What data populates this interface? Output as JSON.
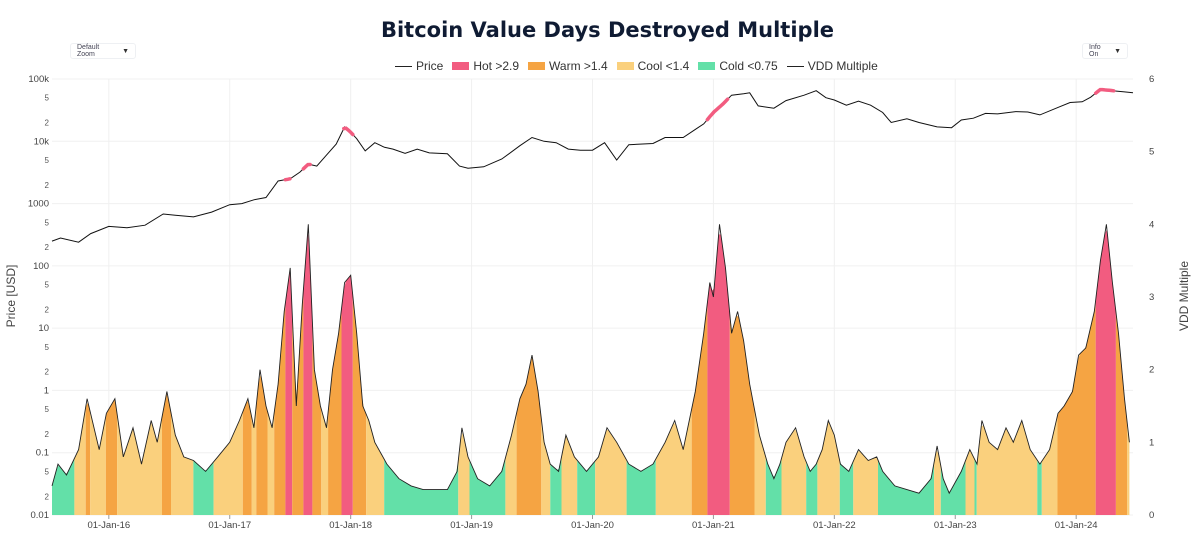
{
  "controls": {
    "zoom_label": "Default Zoom",
    "info_label": "Info On",
    "dropdown_icon": "▼"
  },
  "chart_data": {
    "type": "line",
    "title": "Bitcoin Value Days Destroyed Multiple",
    "legend": [
      {
        "label": "Price",
        "kind": "line",
        "color": "#000000"
      },
      {
        "label": "Hot >2.9",
        "kind": "band",
        "color": "#f25c80"
      },
      {
        "label": "Warm >1.4",
        "kind": "band",
        "color": "#f5a443"
      },
      {
        "label": "Cool <1.4",
        "kind": "band",
        "color": "#fad07d"
      },
      {
        "label": "Cold <0.75",
        "kind": "band",
        "color": "#63e0a8"
      },
      {
        "label": "VDD Multiple",
        "kind": "line",
        "color": "#000000"
      }
    ],
    "y_left": {
      "title": "Price [USD]",
      "scale": "log",
      "range": [
        0.01,
        100000
      ],
      "major_ticks": [
        {
          "value": 100000,
          "label": "100k"
        },
        {
          "value": 10000,
          "label": "10k"
        },
        {
          "value": 1000,
          "label": "1000"
        },
        {
          "value": 100,
          "label": "100"
        },
        {
          "value": 10,
          "label": "10"
        },
        {
          "value": 1,
          "label": "1"
        },
        {
          "value": 0.1,
          "label": "0.1"
        },
        {
          "value": 0.01,
          "label": "0.01"
        }
      ],
      "minor_ticks": [
        {
          "value": 50000,
          "label": "5"
        },
        {
          "value": 20000,
          "label": "2"
        },
        {
          "value": 5000,
          "label": "5"
        },
        {
          "value": 2000,
          "label": "2"
        },
        {
          "value": 500,
          "label": "5"
        },
        {
          "value": 200,
          "label": "2"
        },
        {
          "value": 50,
          "label": "5"
        },
        {
          "value": 20,
          "label": "2"
        },
        {
          "value": 5,
          "label": "5"
        },
        {
          "value": 2,
          "label": "2"
        },
        {
          "value": 0.5,
          "label": "5"
        },
        {
          "value": 0.2,
          "label": "2"
        },
        {
          "value": 0.05,
          "label": "5"
        },
        {
          "value": 0.02,
          "label": "2"
        }
      ]
    },
    "y_right": {
      "title": "VDD Multiple",
      "scale": "linear",
      "range": [
        0,
        6
      ],
      "ticks": [
        {
          "value": 0,
          "label": "0"
        },
        {
          "value": 1,
          "label": "1"
        },
        {
          "value": 2,
          "label": "2"
        },
        {
          "value": 3,
          "label": "3"
        },
        {
          "value": 4,
          "label": "4"
        },
        {
          "value": 5,
          "label": "5"
        },
        {
          "value": 6,
          "label": "6"
        }
      ]
    },
    "x_axis": {
      "range": [
        2015.53,
        2024.47
      ],
      "ticks": [
        {
          "value": 2016.0,
          "label": "01-Jan-16"
        },
        {
          "value": 2017.0,
          "label": "01-Jan-17"
        },
        {
          "value": 2018.0,
          "label": "01-Jan-18"
        },
        {
          "value": 2019.0,
          "label": "01-Jan-19"
        },
        {
          "value": 2020.0,
          "label": "01-Jan-20"
        },
        {
          "value": 2021.0,
          "label": "01-Jan-21"
        },
        {
          "value": 2022.0,
          "label": "01-Jan-22"
        },
        {
          "value": 2023.0,
          "label": "01-Jan-23"
        },
        {
          "value": 2024.0,
          "label": "01-Jan-24"
        }
      ]
    },
    "thresholds": {
      "hot": 2.9,
      "warm": 1.4,
      "cool": 0.75
    },
    "price_series": [
      [
        2015.53,
        250
      ],
      [
        2015.6,
        280
      ],
      [
        2015.75,
        240
      ],
      [
        2015.85,
        330
      ],
      [
        2016.0,
        430
      ],
      [
        2016.15,
        410
      ],
      [
        2016.3,
        450
      ],
      [
        2016.45,
        680
      ],
      [
        2016.55,
        650
      ],
      [
        2016.7,
        610
      ],
      [
        2016.85,
        730
      ],
      [
        2017.0,
        960
      ],
      [
        2017.1,
        1000
      ],
      [
        2017.2,
        1150
      ],
      [
        2017.3,
        1250
      ],
      [
        2017.4,
        2300
      ],
      [
        2017.5,
        2500
      ],
      [
        2017.58,
        3200
      ],
      [
        2017.65,
        4300
      ],
      [
        2017.72,
        4000
      ],
      [
        2017.8,
        6000
      ],
      [
        2017.88,
        9000
      ],
      [
        2017.95,
        17000
      ],
      [
        2018.0,
        14000
      ],
      [
        2018.05,
        11000
      ],
      [
        2018.12,
        7000
      ],
      [
        2018.2,
        9500
      ],
      [
        2018.28,
        8000
      ],
      [
        2018.35,
        7500
      ],
      [
        2018.45,
        6400
      ],
      [
        2018.55,
        7500
      ],
      [
        2018.65,
        6500
      ],
      [
        2018.8,
        6300
      ],
      [
        2018.9,
        4000
      ],
      [
        2018.97,
        3700
      ],
      [
        2019.1,
        3900
      ],
      [
        2019.25,
        5200
      ],
      [
        2019.4,
        8500
      ],
      [
        2019.5,
        11500
      ],
      [
        2019.6,
        10000
      ],
      [
        2019.7,
        9500
      ],
      [
        2019.8,
        7500
      ],
      [
        2019.9,
        7200
      ],
      [
        2020.0,
        7200
      ],
      [
        2020.1,
        9500
      ],
      [
        2020.2,
        5000
      ],
      [
        2020.3,
        8800
      ],
      [
        2020.5,
        9200
      ],
      [
        2020.6,
        11500
      ],
      [
        2020.75,
        11500
      ],
      [
        2020.85,
        15500
      ],
      [
        2020.92,
        19000
      ],
      [
        2021.0,
        29000
      ],
      [
        2021.08,
        40000
      ],
      [
        2021.15,
        55000
      ],
      [
        2021.25,
        58000
      ],
      [
        2021.3,
        60000
      ],
      [
        2021.37,
        37000
      ],
      [
        2021.5,
        34000
      ],
      [
        2021.6,
        45000
      ],
      [
        2021.75,
        55000
      ],
      [
        2021.85,
        65000
      ],
      [
        2021.93,
        50000
      ],
      [
        2022.0,
        46000
      ],
      [
        2022.1,
        38000
      ],
      [
        2022.2,
        44000
      ],
      [
        2022.3,
        38000
      ],
      [
        2022.4,
        29000
      ],
      [
        2022.47,
        20000
      ],
      [
        2022.6,
        23000
      ],
      [
        2022.7,
        20000
      ],
      [
        2022.85,
        17000
      ],
      [
        2022.97,
        16500
      ],
      [
        2023.05,
        22000
      ],
      [
        2023.15,
        23500
      ],
      [
        2023.25,
        28000
      ],
      [
        2023.35,
        27500
      ],
      [
        2023.5,
        30000
      ],
      [
        2023.6,
        29500
      ],
      [
        2023.7,
        26500
      ],
      [
        2023.85,
        35000
      ],
      [
        2023.95,
        42000
      ],
      [
        2024.05,
        43000
      ],
      [
        2024.12,
        51000
      ],
      [
        2024.2,
        68000
      ],
      [
        2024.3,
        65000
      ],
      [
        2024.4,
        62000
      ],
      [
        2024.47,
        60000
      ]
    ],
    "vdd_series": [
      [
        2015.53,
        0.4
      ],
      [
        2015.58,
        0.7
      ],
      [
        2015.65,
        0.55
      ],
      [
        2015.75,
        0.9
      ],
      [
        2015.82,
        1.6
      ],
      [
        2015.92,
        0.9
      ],
      [
        2015.98,
        1.4
      ],
      [
        2016.05,
        1.6
      ],
      [
        2016.12,
        0.8
      ],
      [
        2016.2,
        1.2
      ],
      [
        2016.27,
        0.7
      ],
      [
        2016.35,
        1.3
      ],
      [
        2016.4,
        1.0
      ],
      [
        2016.48,
        1.7
      ],
      [
        2016.55,
        1.1
      ],
      [
        2016.62,
        0.8
      ],
      [
        2016.7,
        0.75
      ],
      [
        2016.8,
        0.6
      ],
      [
        2016.9,
        0.8
      ],
      [
        2017.0,
        1.0
      ],
      [
        2017.08,
        1.3
      ],
      [
        2017.15,
        1.6
      ],
      [
        2017.2,
        1.2
      ],
      [
        2017.25,
        2.0
      ],
      [
        2017.3,
        1.5
      ],
      [
        2017.35,
        1.2
      ],
      [
        2017.4,
        1.8
      ],
      [
        2017.45,
        2.8
      ],
      [
        2017.5,
        3.4
      ],
      [
        2017.55,
        1.5
      ],
      [
        2017.6,
        2.9
      ],
      [
        2017.65,
        4.0
      ],
      [
        2017.7,
        2.0
      ],
      [
        2017.75,
        1.5
      ],
      [
        2017.8,
        1.2
      ],
      [
        2017.85,
        2.0
      ],
      [
        2017.9,
        2.5
      ],
      [
        2017.95,
        3.2
      ],
      [
        2018.0,
        3.3
      ],
      [
        2018.05,
        2.5
      ],
      [
        2018.1,
        1.5
      ],
      [
        2018.15,
        1.3
      ],
      [
        2018.2,
        1.0
      ],
      [
        2018.3,
        0.7
      ],
      [
        2018.4,
        0.5
      ],
      [
        2018.5,
        0.4
      ],
      [
        2018.6,
        0.35
      ],
      [
        2018.7,
        0.35
      ],
      [
        2018.8,
        0.35
      ],
      [
        2018.88,
        0.6
      ],
      [
        2018.92,
        1.2
      ],
      [
        2018.97,
        0.8
      ],
      [
        2019.05,
        0.5
      ],
      [
        2019.15,
        0.4
      ],
      [
        2019.25,
        0.6
      ],
      [
        2019.33,
        1.1
      ],
      [
        2019.4,
        1.6
      ],
      [
        2019.45,
        1.8
      ],
      [
        2019.5,
        2.2
      ],
      [
        2019.55,
        1.7
      ],
      [
        2019.6,
        1.0
      ],
      [
        2019.65,
        0.7
      ],
      [
        2019.72,
        0.6
      ],
      [
        2019.78,
        1.1
      ],
      [
        2019.85,
        0.8
      ],
      [
        2019.95,
        0.6
      ],
      [
        2020.05,
        0.8
      ],
      [
        2020.12,
        1.2
      ],
      [
        2020.2,
        1.0
      ],
      [
        2020.3,
        0.7
      ],
      [
        2020.4,
        0.6
      ],
      [
        2020.5,
        0.7
      ],
      [
        2020.6,
        1.0
      ],
      [
        2020.68,
        1.3
      ],
      [
        2020.75,
        0.9
      ],
      [
        2020.85,
        1.7
      ],
      [
        2020.92,
        2.5
      ],
      [
        2020.97,
        3.2
      ],
      [
        2021.0,
        3.0
      ],
      [
        2021.05,
        4.0
      ],
      [
        2021.1,
        3.4
      ],
      [
        2021.15,
        2.5
      ],
      [
        2021.2,
        2.8
      ],
      [
        2021.25,
        2.4
      ],
      [
        2021.3,
        1.8
      ],
      [
        2021.38,
        1.1
      ],
      [
        2021.45,
        0.7
      ],
      [
        2021.5,
        0.5
      ],
      [
        2021.55,
        0.7
      ],
      [
        2021.6,
        1.0
      ],
      [
        2021.68,
        1.2
      ],
      [
        2021.75,
        0.8
      ],
      [
        2021.8,
        0.6
      ],
      [
        2021.85,
        0.7
      ],
      [
        2021.9,
        0.9
      ],
      [
        2021.95,
        1.3
      ],
      [
        2022.0,
        1.1
      ],
      [
        2022.05,
        0.7
      ],
      [
        2022.12,
        0.6
      ],
      [
        2022.2,
        0.9
      ],
      [
        2022.28,
        0.75
      ],
      [
        2022.35,
        0.8
      ],
      [
        2022.4,
        0.6
      ],
      [
        2022.5,
        0.4
      ],
      [
        2022.6,
        0.35
      ],
      [
        2022.7,
        0.3
      ],
      [
        2022.8,
        0.5
      ],
      [
        2022.85,
        0.95
      ],
      [
        2022.9,
        0.5
      ],
      [
        2022.95,
        0.3
      ],
      [
        2023.05,
        0.6
      ],
      [
        2023.12,
        0.9
      ],
      [
        2023.18,
        0.7
      ],
      [
        2023.22,
        1.3
      ],
      [
        2023.28,
        1.0
      ],
      [
        2023.35,
        0.9
      ],
      [
        2023.42,
        1.2
      ],
      [
        2023.48,
        1.0
      ],
      [
        2023.55,
        1.3
      ],
      [
        2023.62,
        0.9
      ],
      [
        2023.7,
        0.7
      ],
      [
        2023.78,
        0.9
      ],
      [
        2023.85,
        1.4
      ],
      [
        2023.9,
        1.5
      ],
      [
        2023.97,
        1.7
      ],
      [
        2024.02,
        2.2
      ],
      [
        2024.08,
        2.3
      ],
      [
        2024.15,
        2.8
      ],
      [
        2024.2,
        3.5
      ],
      [
        2024.25,
        4.0
      ],
      [
        2024.3,
        3.2
      ],
      [
        2024.35,
        2.5
      ],
      [
        2024.4,
        1.6
      ],
      [
        2024.44,
        1.0
      ]
    ]
  }
}
